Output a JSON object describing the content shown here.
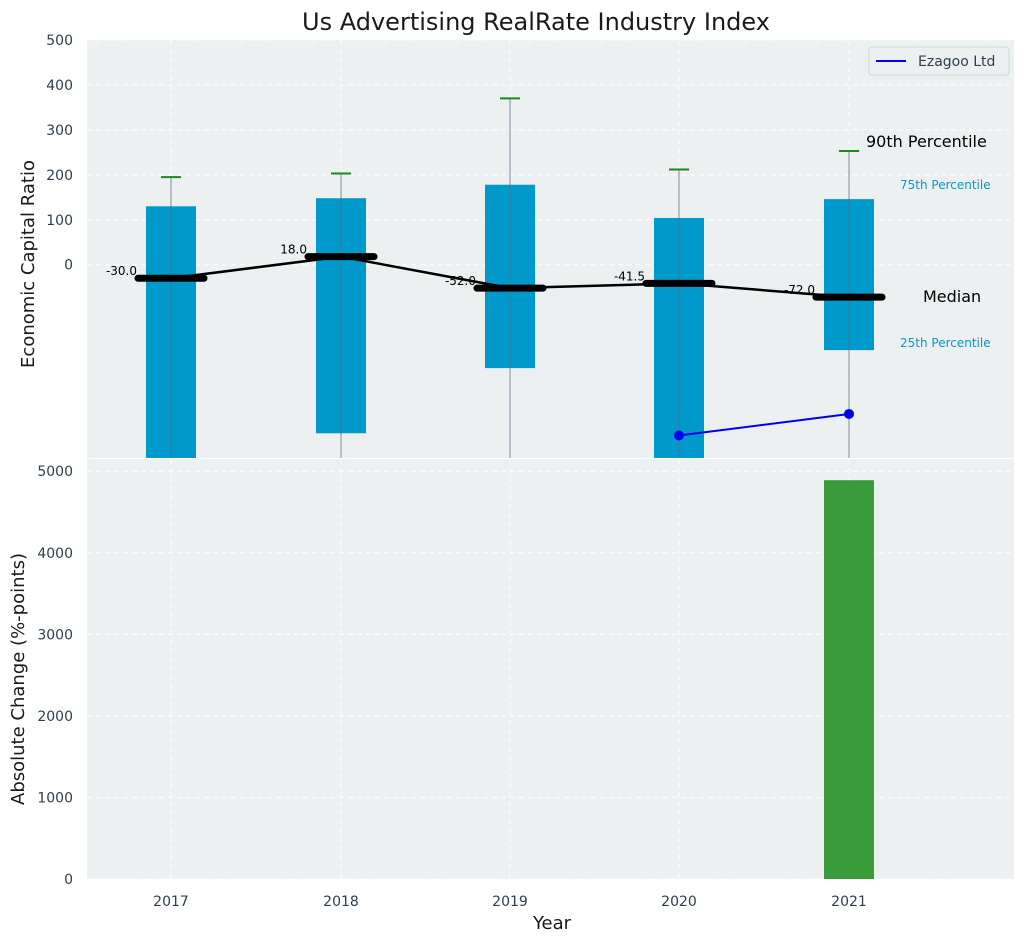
{
  "chart_data": [
    {
      "type": "box",
      "title": "Us Advertising RealRate Industry Index",
      "ylabel": "Economic Capital Ratio",
      "ylim": [
        -430,
        500
      ],
      "yticks": [
        0,
        100,
        200,
        300,
        400,
        500
      ],
      "categories": [
        "2017",
        "2018",
        "2019",
        "2020",
        "2021"
      ],
      "grid": true,
      "legend": {
        "position": "top-right",
        "entries": [
          "Ezagoo Ltd"
        ]
      },
      "box_color": "#0099CC",
      "p25": [
        -430,
        -375,
        -230,
        -430,
        -190
      ],
      "p75": [
        130,
        148,
        178,
        104,
        146
      ],
      "p90": [
        195,
        203,
        370,
        212,
        253
      ],
      "whisker_low": [
        -430,
        -430,
        -430,
        -430,
        -430
      ],
      "median": [
        -30.0,
        18.0,
        -52.0,
        -41.5,
        -72.0
      ],
      "median_labels": [
        "-30.0",
        "18.0",
        "-52.0",
        "-41.5",
        "-72.0"
      ],
      "annotations": {
        "p90": "90th Percentile",
        "p75": "75th Percentile",
        "median": "Median",
        "p25": "25th Percentile"
      },
      "series": [
        {
          "name": "Ezagoo Ltd",
          "color": "#0000EE",
          "x": [
            "2020",
            "2021"
          ],
          "values": [
            -380,
            -332
          ]
        }
      ]
    },
    {
      "type": "bar",
      "xlabel": "Year",
      "ylabel": "Absolute Change (%-points)",
      "ylim": [
        0,
        5150
      ],
      "yticks": [
        0,
        1000,
        2000,
        3000,
        4000,
        5000
      ],
      "categories": [
        "2017",
        "2018",
        "2019",
        "2020",
        "2021"
      ],
      "values": [
        null,
        null,
        null,
        null,
        4890
      ],
      "bar_color": "#3A9B3A"
    }
  ]
}
